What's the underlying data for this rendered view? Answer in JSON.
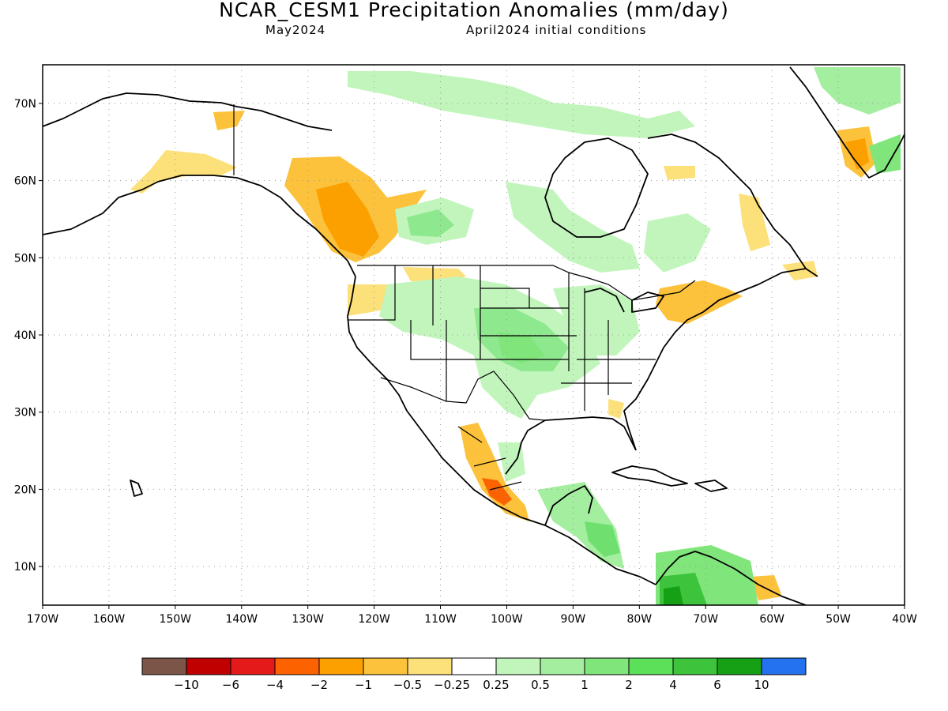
{
  "header": {
    "title": "NCAR_CESM1 Precipitation Anomalies (mm/day)",
    "valid_month": "May2024",
    "init": "April2024 initial conditions"
  },
  "map": {
    "lat_range": [
      5,
      75
    ],
    "lon_range": [
      -170,
      -40
    ],
    "lat_ticks": [
      {
        "value": 10,
        "label": "10N"
      },
      {
        "value": 20,
        "label": "20N"
      },
      {
        "value": 30,
        "label": "30N"
      },
      {
        "value": 40,
        "label": "40N"
      },
      {
        "value": 50,
        "label": "50N"
      },
      {
        "value": 60,
        "label": "60N"
      },
      {
        "value": 70,
        "label": "70N"
      }
    ],
    "lon_ticks": [
      {
        "value": -170,
        "label": "170W"
      },
      {
        "value": -160,
        "label": "160W"
      },
      {
        "value": -150,
        "label": "150W"
      },
      {
        "value": -140,
        "label": "140W"
      },
      {
        "value": -130,
        "label": "130W"
      },
      {
        "value": -120,
        "label": "120W"
      },
      {
        "value": -110,
        "label": "110W"
      },
      {
        "value": -100,
        "label": "100W"
      },
      {
        "value": -90,
        "label": "90W"
      },
      {
        "value": -80,
        "label": "80W"
      },
      {
        "value": -70,
        "label": "70W"
      },
      {
        "value": -60,
        "label": "60W"
      },
      {
        "value": -50,
        "label": "50W"
      },
      {
        "value": -40,
        "label": "40W"
      }
    ],
    "grid": "dotted",
    "anomaly_regions": [
      {
        "area": "southeast-alaska-western-canada",
        "category": "-1 to -0.5",
        "color": "#fcc23c"
      },
      {
        "area": "british-columbia-interior",
        "category": "-1 to -2",
        "color": "#fca000"
      },
      {
        "area": "pacific-northwest-coast",
        "category": "-0.5 to -0.25",
        "color": "#fce07a"
      },
      {
        "area": "western-mexico",
        "category": "-1 to -2",
        "color": "#fca000"
      },
      {
        "area": "southern-mexico-coast",
        "category": "-2 to -4",
        "color": "#fc6300"
      },
      {
        "area": "us-northeast",
        "category": "-1 to -0.5",
        "color": "#fcc23c"
      },
      {
        "area": "greenland-south",
        "category": "-1 to -2",
        "color": "#fca000"
      },
      {
        "area": "central-great-plains",
        "category": "0.5 to 1",
        "color": "#8ee88e"
      },
      {
        "area": "canadian-prairies",
        "category": "0.25 to 0.5",
        "color": "#c2f5bc"
      },
      {
        "area": "central-america",
        "category": "1 to 2",
        "color": "#6fe06f"
      },
      {
        "area": "northern-south-america",
        "category": "2 to 6",
        "color": "#3dc63d"
      }
    ]
  },
  "colorbar": {
    "colors": [
      "#7a5548",
      "#c00000",
      "#e41a1a",
      "#fc6300",
      "#fca000",
      "#fcc23c",
      "#fce07a",
      "#ffffff",
      "#c2f5bc",
      "#a4eea0",
      "#80e57a",
      "#5ce05a",
      "#3ec43c",
      "#16a016",
      "#2472f0"
    ],
    "labels": [
      "−10",
      "−6",
      "−4",
      "−2",
      "−1",
      "−0.5",
      "−0.25",
      "0.25",
      "0.5",
      "1",
      "2",
      "4",
      "6",
      "10"
    ]
  }
}
